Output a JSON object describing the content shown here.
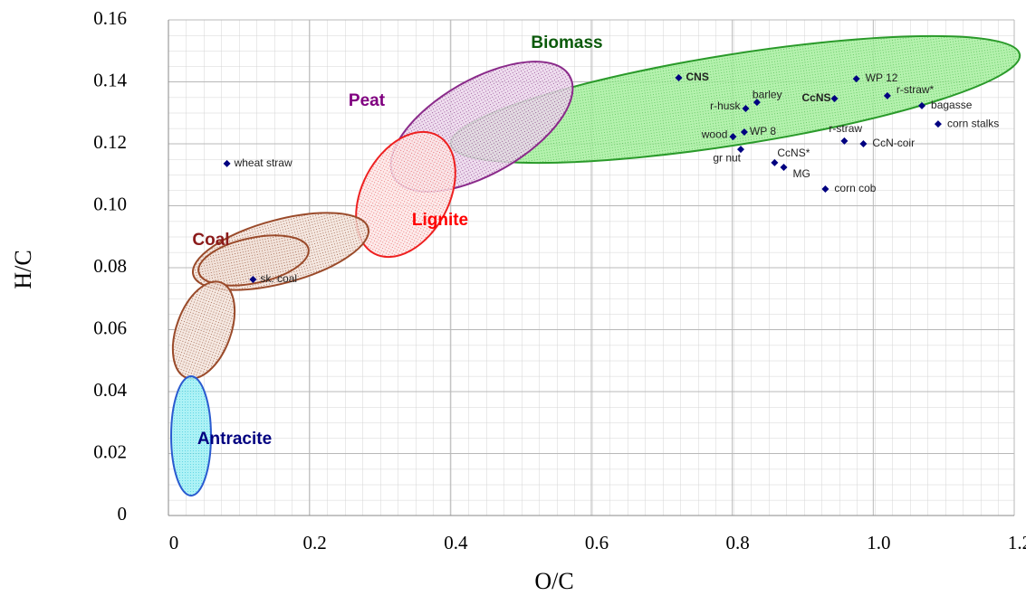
{
  "chart_data": {
    "type": "scatter",
    "x_label": "O/C",
    "y_label": "H/C",
    "xlim": [
      0,
      1.2
    ],
    "ylim": [
      0,
      0.16
    ],
    "xticks": [
      0,
      0.2,
      0.4,
      0.6,
      0.8,
      {
        "value": 1,
        "label": "1.0"
      },
      1.2
    ],
    "yticks": [
      0,
      0.02,
      0.04,
      0.06,
      0.08,
      {
        "value": 0.1,
        "label": "0.10"
      },
      0.12,
      0.14,
      0.16
    ],
    "grid": true,
    "color": "#000080",
    "point_labels": [
      "CNS",
      "WP 12",
      "r-straw*",
      "CcNS",
      "barley",
      "r-husk",
      "bagasse",
      "corn stalks",
      "WP 8",
      "wood",
      "gr nut",
      "r-straw",
      "CcN-coir",
      "CcNS*",
      "MG",
      "corn cob",
      "wheat straw",
      "sk. coal"
    ],
    "x": [
      0.724,
      0.976,
      1.02,
      0.945,
      0.835,
      0.819,
      1.069,
      1.092,
      0.817,
      0.801,
      0.812,
      0.959,
      0.986,
      0.86,
      0.873,
      0.932,
      0.083,
      0.12
    ],
    "values": [
      0.1413,
      0.141,
      0.1355,
      0.1346,
      0.1334,
      0.1314,
      0.1323,
      0.1264,
      0.1238,
      0.1223,
      0.1182,
      0.1209,
      0.12,
      0.1139,
      0.1124,
      0.1054,
      0.1136,
      0.0762
    ],
    "regions": [
      {
        "label": "Biomass",
        "color": "#0a5a0a"
      },
      {
        "label": "Peat",
        "color": "#800080"
      },
      {
        "label": "Lignite",
        "color": "#ff0000"
      },
      {
        "label": "Coal",
        "color": "#8b1a1a"
      },
      {
        "label": "Antracite",
        "color": "#000080"
      }
    ]
  }
}
